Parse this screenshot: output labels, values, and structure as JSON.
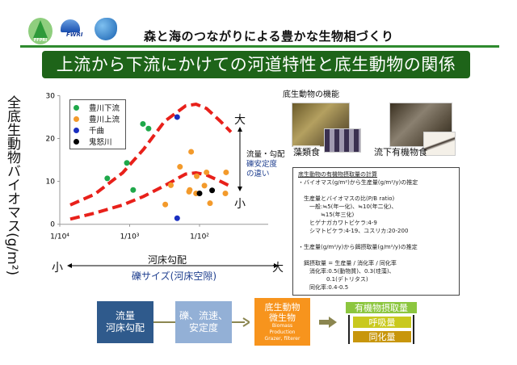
{
  "header": {
    "logos": [
      "FFPRI",
      "FWRI"
    ],
    "subtitle": "森と海のつながりによる豊かな生物相づくり",
    "title": "上流から下流にかけての河道特性と底生動物の関係"
  },
  "chart_data": {
    "type": "scatter",
    "ylabel": "全底生動物バイオマス(g/m²)",
    "xlabel": "河床勾配",
    "xscale": "log10",
    "xlim_log10": [
      -4,
      -1.2
    ],
    "ylim": [
      0,
      30
    ],
    "xticks": [
      {
        "v": -4,
        "label": "1/10⁴"
      },
      {
        "v": -3,
        "label": "1/10³"
      },
      {
        "v": -2,
        "label": "1/10²"
      }
    ],
    "yticks": [
      {
        "v": 0,
        "label": "0"
      },
      {
        "v": 10,
        "label": "10"
      },
      {
        "v": 20,
        "label": "20"
      },
      {
        "v": 30,
        "label": "30"
      }
    ],
    "legend_position": "top-left",
    "series": [
      {
        "name": "豊川下流",
        "color": "#1fa84a",
        "points": [
          [
            -3.32,
            10.7
          ],
          [
            -3.04,
            14.3
          ],
          [
            -2.95,
            8.0
          ],
          [
            -2.81,
            23.4
          ],
          [
            -2.73,
            22.3
          ]
        ]
      },
      {
        "name": "豊川上流",
        "color": "#f39a2b",
        "points": [
          [
            -2.49,
            4.6
          ],
          [
            -2.41,
            9.1
          ],
          [
            -2.28,
            13.4
          ],
          [
            -2.12,
            16.9
          ],
          [
            -2.15,
            7.6
          ],
          [
            -2.14,
            8.0
          ],
          [
            -2.04,
            11.2
          ],
          [
            -2.05,
            7.2
          ],
          [
            -1.93,
            9.0
          ],
          [
            -1.9,
            12.1
          ],
          [
            -1.85,
            4.9
          ],
          [
            -1.62,
            12.1
          ],
          [
            -1.63,
            7.2
          ]
        ]
      },
      {
        "name": "千曲",
        "color": "#1a2fc0",
        "points": [
          [
            -2.32,
            25.0
          ],
          [
            -2.32,
            1.4
          ]
        ]
      },
      {
        "name": "鬼怒川",
        "color": "#000000",
        "points": [
          [
            -2.0,
            7.2
          ],
          [
            -1.82,
            7.9
          ]
        ]
      }
    ],
    "trend_curves": [
      {
        "name": "upper",
        "color": "#e8201a",
        "points": [
          [
            -3.85,
            4.5
          ],
          [
            -3.5,
            7
          ],
          [
            -3.1,
            12
          ],
          [
            -2.8,
            17.5
          ],
          [
            -2.5,
            24
          ],
          [
            -2.2,
            27.6
          ],
          [
            -2.05,
            28
          ],
          [
            -1.9,
            27
          ],
          [
            -1.7,
            24
          ],
          [
            -1.55,
            21.5
          ]
        ]
      },
      {
        "name": "lower",
        "color": "#e8201a",
        "points": [
          [
            -3.85,
            1.2
          ],
          [
            -3.5,
            2.6
          ],
          [
            -3.1,
            4.5
          ],
          [
            -2.8,
            6.5
          ],
          [
            -2.5,
            9
          ],
          [
            -2.2,
            11.7
          ],
          [
            -2.05,
            12
          ],
          [
            -1.9,
            11.5
          ],
          [
            -1.7,
            10
          ],
          [
            -1.55,
            8.8
          ]
        ]
      }
    ]
  },
  "annotations": {
    "big": "大",
    "small": "小",
    "flow_gradient": "流量・勾配",
    "stability_1": "礫安定度",
    "stability_2": "の違い",
    "axis_small": "小",
    "axis_big": "大",
    "gravel": "礫サイズ(河床空隙)"
  },
  "function": {
    "title": "底生動物の機能",
    "photo1": "藻類食",
    "photo2": "流下有機物食"
  },
  "calc": {
    "title": "底生動物の有機物摂取量の計算",
    "lines": [
      "・バイオマス(g/m²)から生産量(g/m²/y)の推定",
      "",
      "　生産量とバイオマスの比(P/B ratio)",
      "　　一般:≒5(年一化)、≒10(年二化)、",
      "　　　　≒15(年三化)",
      "　　ヒゲナガカワトビケラ:4-9",
      "　　シマトビケラ:4-19、ユスリカ:20-200",
      "",
      "・生産量(g/m²/y)から餌摂取量(g/m²/y)の推定",
      "",
      "　餌摂取量 = 生産量 / 消化率 / 同化率",
      "　　消化率:0.5(動物質)、0.3(珪藻)、",
      "　　　　　0.1(デトリタス)",
      "　　同化率:0.4-0.5"
    ]
  },
  "flow": {
    "box1": [
      "流量",
      "河床勾配"
    ],
    "box2": [
      "礫、流速、",
      "安定度"
    ],
    "box3": [
      "底生動物",
      "微生物"
    ],
    "box3_sub": [
      "Biomass",
      "Production",
      "Grazer, filterer"
    ],
    "box4_title": "有機物摂取量",
    "box4_a": "呼吸量",
    "box4_b": "同化量",
    "colors": {
      "box1": "#2f5a8c",
      "box2": "#93b0d6",
      "box3": "#f7941d",
      "title": "#8cc63f",
      "a": "#c9c91e",
      "b": "#c8960c",
      "arrow": "#8b8650"
    }
  }
}
